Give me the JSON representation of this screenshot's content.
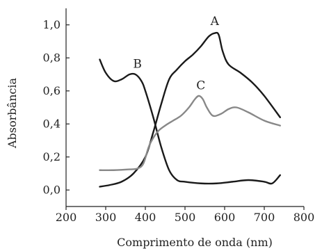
{
  "chart_data": {
    "type": "line",
    "title": "",
    "xlabel": "Comprimento de onda (nm)",
    "ylabel": "Absorbância",
    "xlim": [
      200,
      800
    ],
    "ylim": [
      -0.1,
      1.1
    ],
    "x_ticks": [
      200,
      300,
      400,
      500,
      600,
      700,
      800
    ],
    "x_tick_labels": [
      "200",
      "300",
      "400",
      "500",
      "600",
      "700",
      "800"
    ],
    "y_ticks": [
      0.0,
      0.2,
      0.4,
      0.6,
      0.8,
      1.0
    ],
    "y_tick_labels": [
      "0,0",
      "0,2",
      "0,4",
      "0,6",
      "0,8",
      "1,0"
    ],
    "grid": false,
    "legend": "none",
    "series": [
      {
        "name": "A",
        "color": "#1a1a1a",
        "x": [
          285,
          310,
          340,
          370,
          400,
          420,
          440,
          460,
          480,
          500,
          520,
          540,
          560,
          575,
          585,
          595,
          610,
          640,
          670,
          700,
          740
        ],
        "y": [
          0.02,
          0.03,
          0.05,
          0.1,
          0.2,
          0.35,
          0.52,
          0.67,
          0.73,
          0.78,
          0.82,
          0.87,
          0.93,
          0.95,
          0.94,
          0.84,
          0.76,
          0.71,
          0.65,
          0.57,
          0.44
        ],
        "label_at": [
          575,
          1.0
        ]
      },
      {
        "name": "B",
        "color": "#1a1a1a",
        "x": [
          285,
          300,
          320,
          340,
          360,
          375,
          390,
          400,
          420,
          440,
          460,
          480,
          500,
          540,
          580,
          620,
          660,
          700,
          720,
          740
        ],
        "y": [
          0.79,
          0.71,
          0.66,
          0.67,
          0.7,
          0.7,
          0.66,
          0.6,
          0.44,
          0.26,
          0.12,
          0.06,
          0.05,
          0.04,
          0.04,
          0.05,
          0.06,
          0.05,
          0.04,
          0.09
        ],
        "label_at": [
          380,
          0.74
        ]
      },
      {
        "name": "C",
        "color": "#888888",
        "x": [
          285,
          320,
          360,
          380,
          395,
          410,
          430,
          450,
          470,
          490,
          510,
          525,
          535,
          545,
          555,
          570,
          590,
          610,
          630,
          660,
          700,
          740
        ],
        "y": [
          0.12,
          0.12,
          0.125,
          0.13,
          0.16,
          0.27,
          0.35,
          0.39,
          0.42,
          0.45,
          0.5,
          0.55,
          0.57,
          0.55,
          0.5,
          0.45,
          0.46,
          0.49,
          0.5,
          0.47,
          0.42,
          0.39
        ],
        "label_at": [
          540,
          0.61
        ]
      }
    ]
  }
}
